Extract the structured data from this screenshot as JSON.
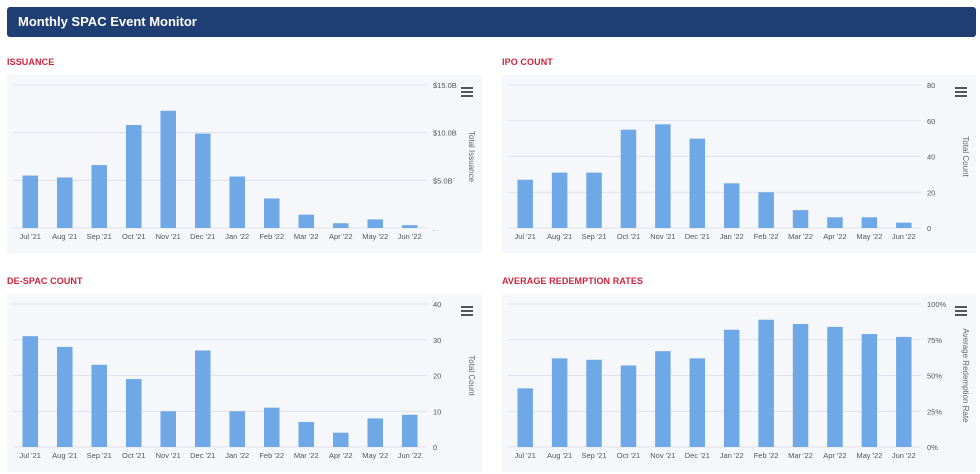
{
  "header": {
    "title": "Monthly SPAC Event Monitor"
  },
  "colors": {
    "bar": "#6fa8e6",
    "grid": "#d9dce6",
    "title": "#d0243c",
    "header": "#1f3e73"
  },
  "icons": {
    "menu": "hamburger-menu-icon"
  },
  "chart_data": [
    {
      "id": "issuance",
      "title": "ISSUANCE",
      "type": "bar",
      "ylabel": "Total Issuance",
      "categories": [
        "Jul '21",
        "Aug '21",
        "Sep '21",
        "Oct '21",
        "Nov '21",
        "Dec '21",
        "Jan '22",
        "Feb '22",
        "Mar '22",
        "Apr '22",
        "May '22",
        "Jun '22"
      ],
      "values": [
        5.5,
        5.3,
        6.6,
        10.8,
        12.3,
        9.9,
        5.4,
        3.1,
        1.4,
        0.5,
        0.9,
        0.3
      ],
      "ylim": [
        0,
        15
      ],
      "yticks": [
        0,
        5,
        10,
        15
      ],
      "ytick_labels": [
        ".",
        "$5.0B",
        "$10.0B",
        "$15.0B"
      ],
      "grid": true
    },
    {
      "id": "ipo-count",
      "title": "IPO COUNT",
      "type": "bar",
      "ylabel": "Total Count",
      "categories": [
        "Jul '21",
        "Aug '21",
        "Sep '21",
        "Oct '21",
        "Nov '21",
        "Dec '21",
        "Jan '22",
        "Feb '22",
        "Mar '22",
        "Apr '22",
        "May '22",
        "Jun '22"
      ],
      "values": [
        27,
        31,
        31,
        55,
        58,
        50,
        25,
        20,
        10,
        6,
        6,
        3
      ],
      "ylim": [
        0,
        80
      ],
      "yticks": [
        0,
        20,
        40,
        60,
        80
      ],
      "ytick_labels": [
        "0",
        "20",
        "40",
        "60",
        "80"
      ],
      "grid": true
    },
    {
      "id": "de-spac-count",
      "title": "DE-SPAC COUNT",
      "type": "bar",
      "ylabel": "Total Count",
      "categories": [
        "Jul '21",
        "Aug '21",
        "Sep '21",
        "Oct '21",
        "Nov '21",
        "Dec '21",
        "Jan '22",
        "Feb '22",
        "Mar '22",
        "Apr '22",
        "May '22",
        "Jun '22"
      ],
      "values": [
        31,
        28,
        23,
        19,
        10,
        27,
        10,
        11,
        7,
        4,
        8,
        9
      ],
      "ylim": [
        0,
        40
      ],
      "yticks": [
        0,
        10,
        20,
        30,
        40
      ],
      "ytick_labels": [
        "0",
        "10",
        "20",
        "30",
        "40"
      ],
      "grid": true
    },
    {
      "id": "average-redemption-rates",
      "title": "AVERAGE REDEMPTION RATES",
      "type": "bar",
      "ylabel": "Average Redemption Rate",
      "categories": [
        "Jul '21",
        "Aug '21",
        "Sep '21",
        "Oct '21",
        "Nov '21",
        "Dec '21",
        "Jan '22",
        "Feb '22",
        "Mar '22",
        "Apr '22",
        "May '22",
        "Jun '22"
      ],
      "values": [
        41,
        62,
        61,
        57,
        67,
        62,
        82,
        89,
        86,
        84,
        79,
        77
      ],
      "ylim": [
        0,
        100
      ],
      "yticks": [
        0,
        25,
        50,
        75,
        100
      ],
      "ytick_labels": [
        "0%",
        "25%",
        "50%",
        "75%",
        "100%"
      ],
      "grid": true
    }
  ]
}
